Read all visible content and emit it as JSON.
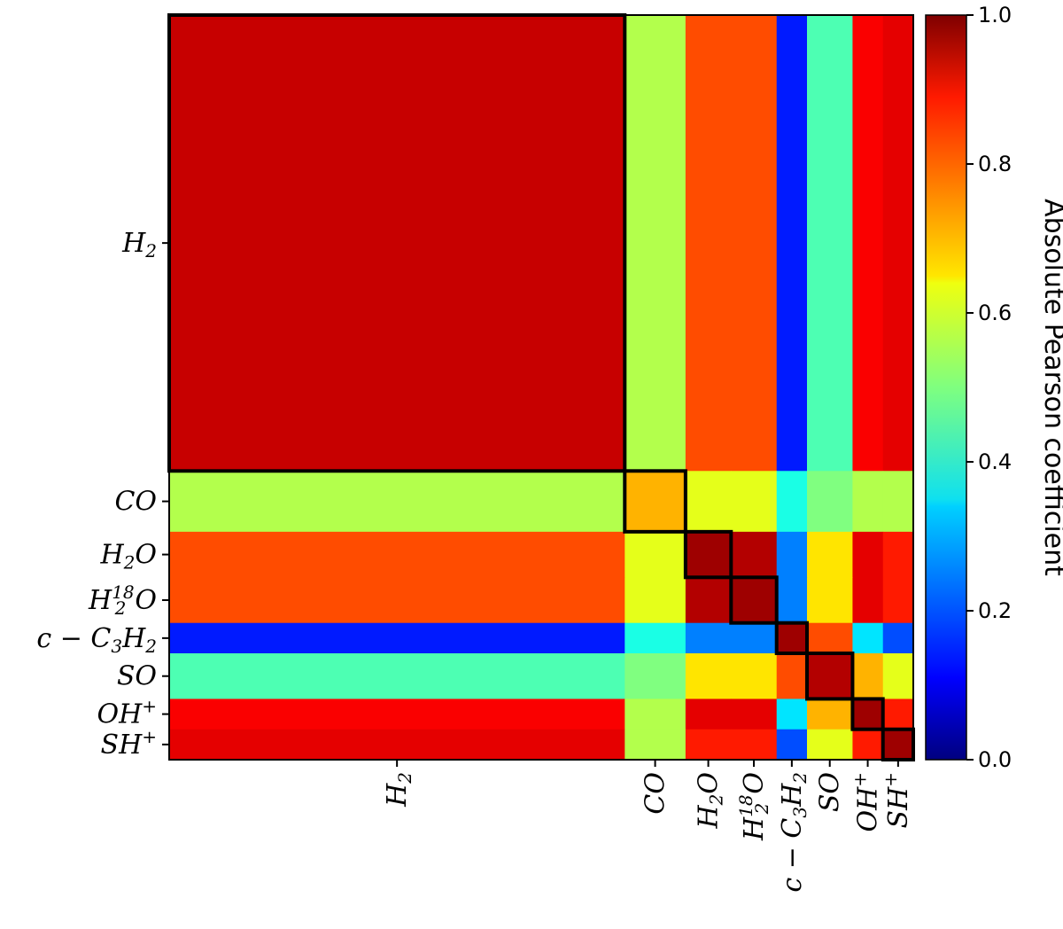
{
  "chart_data": {
    "type": "heatmap",
    "title": "",
    "colormap": "jet",
    "species": [
      {
        "key": "H2",
        "label": "H2",
        "start": 0,
        "end": 30
      },
      {
        "key": "CO",
        "label": "CO",
        "start": 30,
        "end": 34
      },
      {
        "key": "H2O",
        "label": "H2O",
        "start": 34,
        "end": 37
      },
      {
        "key": "H2-18O",
        "label": "H2-18O",
        "start": 37,
        "end": 40
      },
      {
        "key": "c-C3H2",
        "label": "c − C3H2",
        "start": 40,
        "end": 42
      },
      {
        "key": "SO",
        "label": "SO",
        "start": 42,
        "end": 45
      },
      {
        "key": "OH+",
        "label": "OH+",
        "start": 45,
        "end": 47
      },
      {
        "key": "SH+",
        "label": "SH+",
        "start": 47,
        "end": 49
      }
    ],
    "block_correlation": {
      "H2": [
        0.93,
        0.55,
        0.8,
        0.8,
        0.15,
        0.45,
        0.88,
        0.9
      ],
      "CO": [
        0.55,
        0.7,
        0.6,
        0.6,
        0.4,
        0.5,
        0.55,
        0.55
      ],
      "H2O": [
        0.8,
        0.6,
        0.97,
        0.95,
        0.25,
        0.65,
        0.9,
        0.85
      ],
      "H2-18O": [
        0.8,
        0.6,
        0.95,
        0.97,
        0.25,
        0.65,
        0.9,
        0.85
      ],
      "c-C3H2": [
        0.15,
        0.4,
        0.25,
        0.25,
        0.97,
        0.8,
        0.35,
        0.2
      ],
      "SO": [
        0.45,
        0.5,
        0.65,
        0.65,
        0.8,
        0.95,
        0.7,
        0.6
      ],
      "OH+": [
        0.88,
        0.55,
        0.9,
        0.9,
        0.35,
        0.7,
        0.97,
        0.85
      ],
      "SH+": [
        0.9,
        0.55,
        0.85,
        0.85,
        0.2,
        0.6,
        0.85,
        0.97
      ]
    },
    "colorbar": {
      "label": "Absolute Pearson coefficient",
      "range": [
        0.0,
        1.0
      ],
      "ticks": [
        "0.0",
        "0.2",
        "0.4",
        "0.6",
        "0.8",
        "1.0"
      ]
    }
  }
}
